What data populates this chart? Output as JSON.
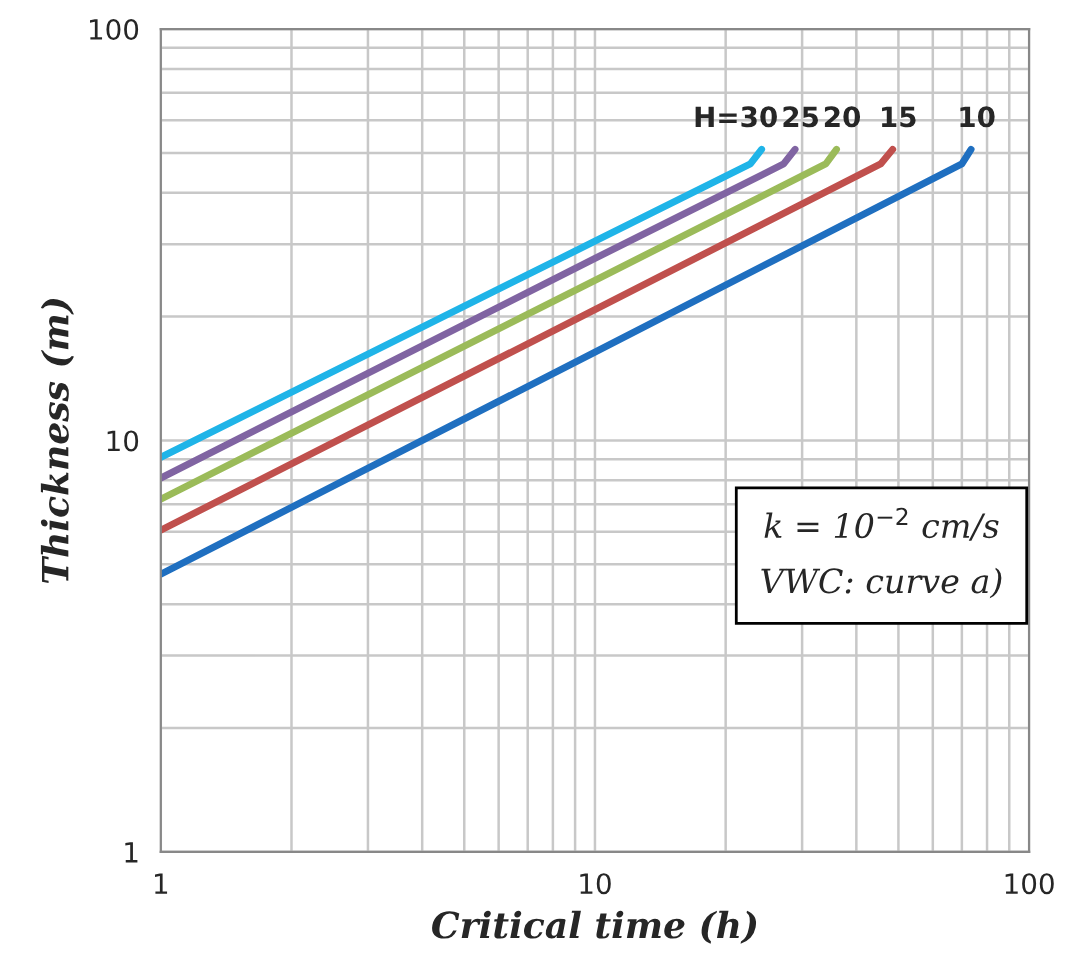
{
  "chart_data": {
    "type": "line",
    "xlabel": "Critical time (h)",
    "ylabel": "Thickness (m)",
    "log": "xy",
    "xlim": [
      1,
      100
    ],
    "ylim": [
      1,
      100
    ],
    "xticks": [
      1,
      10,
      100
    ],
    "yticks": [
      1,
      10,
      100
    ],
    "grid": true,
    "legend": false,
    "marker": "none",
    "line_style": "solid",
    "series": [
      {
        "name": "H=30",
        "color": "#1fb4e8",
        "x": [
          1,
          10,
          22.8,
          24.2
        ],
        "values": [
          9.1,
          30.5,
          47,
          51
        ]
      },
      {
        "name": "25",
        "color": "#8064a2",
        "x": [
          1,
          10,
          27.2,
          28.9
        ],
        "values": [
          8.1,
          27.7,
          47,
          51
        ]
      },
      {
        "name": "20",
        "color": "#9bbb59",
        "x": [
          1,
          10,
          34,
          36
        ],
        "values": [
          7.2,
          24.5,
          47,
          51
        ]
      },
      {
        "name": "15",
        "color": "#c0504d",
        "x": [
          1,
          10,
          45.5,
          48.5
        ],
        "values": [
          6.05,
          20.8,
          47,
          51
        ]
      },
      {
        "name": "10",
        "color": "#1f6fc0",
        "x": [
          1,
          10,
          70,
          73.5
        ],
        "values": [
          4.73,
          16.4,
          47,
          51
        ]
      }
    ],
    "annotations": [
      "k = 10$^{−2}$ cm/s",
      "VWC: curve a)"
    ]
  }
}
